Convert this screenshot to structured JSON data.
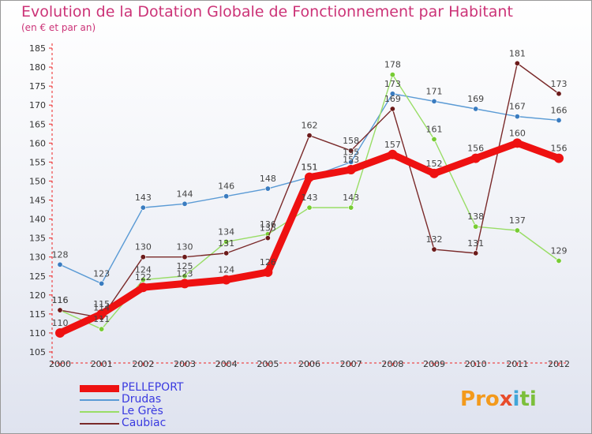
{
  "header": {
    "title": "Evolution de la Dotation Globale de Fonctionnement par Habitant",
    "subtitle": "(en € et par an)"
  },
  "brand": {
    "logo_text": "Proxiti"
  },
  "chart_data": {
    "type": "line",
    "title": "Evolution de la Dotation Globale de Fonctionnement par Habitant",
    "subtitle": "(en € et par an)",
    "xlabel": "",
    "ylabel": "",
    "x": [
      "2000",
      "2001",
      "2002",
      "2003",
      "2004",
      "2005",
      "2006",
      "2007",
      "2008",
      "2009",
      "2010",
      "2011",
      "2012"
    ],
    "ylim": [
      105,
      185
    ],
    "yticks": [
      105,
      110,
      115,
      120,
      125,
      130,
      135,
      140,
      145,
      150,
      155,
      160,
      165,
      170,
      175,
      180,
      185
    ],
    "grid": false,
    "legend_position": "bottom-left",
    "series": [
      {
        "name": "PELLEPORT",
        "color": "#ee1111",
        "style": "thick",
        "values": [
          110,
          115,
          122,
          123,
          124,
          126,
          151,
          153,
          157,
          152,
          156,
          160,
          156
        ],
        "labels": [
          "110",
          "115",
          "122",
          "123",
          "124",
          "126",
          "151",
          "153",
          "157",
          "152",
          "156",
          "160",
          "156"
        ]
      },
      {
        "name": "Drudas",
        "color": "#5b9bd5",
        "marker": "#3a7cc0",
        "values": [
          128,
          123,
          143,
          144,
          146,
          148,
          151,
          155,
          173,
          171,
          169,
          167,
          166
        ],
        "labels": [
          "128",
          "123",
          "143",
          "144",
          "146",
          "148",
          "151",
          "155",
          "173",
          "171",
          "169",
          "167",
          "166"
        ]
      },
      {
        "name": "Le Grès",
        "color": "#99dd66",
        "marker": "#77cc33",
        "values": [
          116,
          111,
          124,
          125,
          134,
          136,
          143,
          143,
          178,
          161,
          138,
          137,
          129
        ],
        "labels": [
          "116",
          "111",
          "124",
          "125",
          "134",
          "136",
          "143",
          "143",
          "178",
          "161",
          "138",
          "137",
          "129"
        ]
      },
      {
        "name": "Caubiac",
        "color": "#7a2a2a",
        "marker": "#6b1a1a",
        "values": [
          116,
          114,
          130,
          130,
          131,
          135,
          162,
          158,
          169,
          132,
          131,
          181,
          173
        ],
        "labels": [
          "116",
          "114",
          "130",
          "130",
          "131",
          "135",
          "162",
          "158",
          "169",
          "132",
          "131",
          "181",
          "173"
        ]
      }
    ]
  }
}
